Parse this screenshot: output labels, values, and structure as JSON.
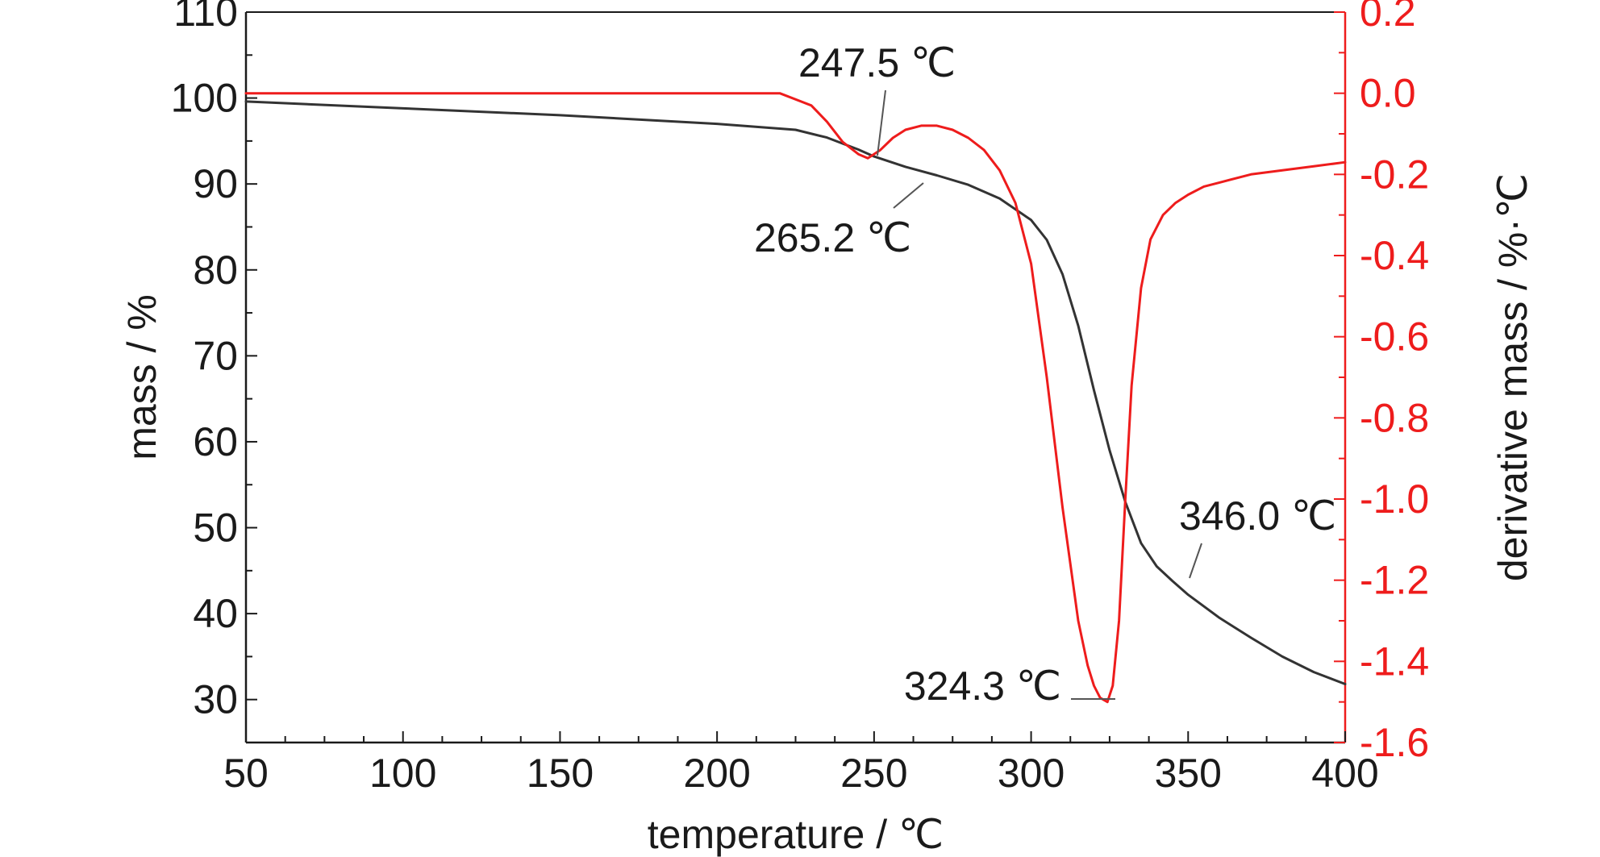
{
  "chart_data": {
    "type": "line",
    "xlabel": "temperature / ℃",
    "ylabel_left": "mass / %",
    "ylabel_right": "derivative mass / %·℃",
    "xlim": [
      50,
      400
    ],
    "ylim_left": [
      25,
      110
    ],
    "ylim_right": [
      -1.6,
      0.2
    ],
    "x_ticks": [
      50,
      100,
      150,
      200,
      250,
      300,
      350,
      400
    ],
    "y_left_ticks": [
      30,
      40,
      50,
      60,
      70,
      80,
      90,
      100,
      110
    ],
    "y_right_ticks": [
      0.2,
      0.0,
      -0.2,
      -0.4,
      -0.6,
      -0.8,
      -1.0,
      -1.2,
      -1.4,
      -1.6
    ],
    "y_right_tick_labels": [
      "0.2",
      "0.0",
      "-0.2",
      "-0.4",
      "-0.6",
      "-0.8",
      "-1.0",
      "-1.2",
      "-1.4",
      "-1.6"
    ],
    "grid": false,
    "colors": {
      "mass": "#333333",
      "derivative": "#ee1c1c",
      "axis": "#1a1a1a"
    },
    "series": [
      {
        "axis": "left",
        "x": [
          50,
          100,
          150,
          200,
          225,
          235,
          245,
          250,
          260,
          270,
          280,
          290,
          300,
          305,
          310,
          315,
          320,
          325,
          330,
          335,
          340,
          345,
          350,
          360,
          370,
          380,
          390,
          400
        ],
        "values": [
          99.6,
          98.8,
          98.0,
          97.0,
          96.3,
          95.4,
          94.0,
          93.2,
          92.0,
          91.0,
          89.9,
          88.3,
          85.8,
          83.5,
          79.5,
          73.5,
          66.0,
          59.0,
          53.0,
          48.2,
          45.5,
          43.8,
          42.2,
          39.5,
          37.2,
          35.0,
          33.2,
          31.8
        ]
      },
      {
        "axis": "right",
        "x": [
          50,
          100,
          150,
          200,
          220,
          230,
          235,
          240,
          245,
          248,
          252,
          256,
          260,
          265,
          270,
          275,
          280,
          285,
          290,
          295,
          300,
          305,
          310,
          315,
          318,
          320,
          322,
          324.3,
          326,
          328,
          330,
          332,
          335,
          338,
          342,
          346,
          350,
          355,
          360,
          370,
          380,
          390,
          400
        ],
        "values": [
          0.0,
          0.0,
          0.0,
          0.0,
          0.0,
          -0.03,
          -0.07,
          -0.12,
          -0.15,
          -0.16,
          -0.14,
          -0.11,
          -0.09,
          -0.08,
          -0.08,
          -0.09,
          -0.11,
          -0.14,
          -0.19,
          -0.27,
          -0.42,
          -0.7,
          -1.02,
          -1.3,
          -1.41,
          -1.46,
          -1.49,
          -1.5,
          -1.46,
          -1.3,
          -1.0,
          -0.72,
          -0.48,
          -0.36,
          -0.3,
          -0.27,
          -0.25,
          -0.23,
          -0.22,
          -0.2,
          -0.19,
          -0.18,
          -0.17
        ]
      }
    ],
    "annotations": [
      {
        "text": "247.5 ℃",
        "x": 247.5,
        "y_right": -0.15
      },
      {
        "text": "265.2 ℃",
        "x": 265.2,
        "y_left": 92.0
      },
      {
        "text": "324.3 ℃",
        "x": 324.3,
        "y_right": -1.5
      },
      {
        "text": "346.0 ℃",
        "x": 346.0,
        "y_left": 44.5
      }
    ]
  }
}
